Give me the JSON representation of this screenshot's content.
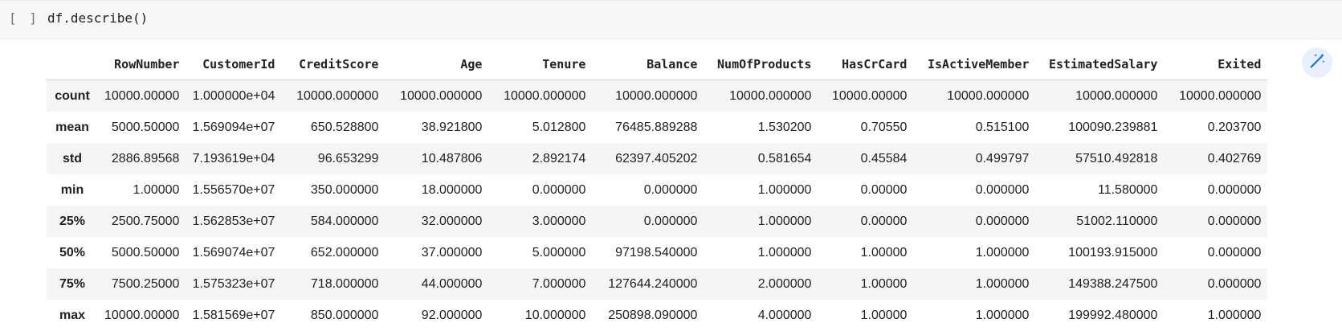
{
  "code_cell": {
    "run_indicator": "[ ]",
    "code": "df.describe()"
  },
  "icons": {
    "wand": "magic-wand-icon"
  },
  "colors": {
    "accent": "#1a73e8",
    "cell_background": "#f7f7f7",
    "row_stripe": "#f5f5f5"
  },
  "table": {
    "columns": [
      "RowNumber",
      "CustomerId",
      "CreditScore",
      "Age",
      "Tenure",
      "Balance",
      "NumOfProducts",
      "HasCrCard",
      "IsActiveMember",
      "EstimatedSalary",
      "Exited"
    ],
    "rows": [
      {
        "label": "count",
        "values": [
          "10000.00000",
          "1.000000e+04",
          "10000.000000",
          "10000.000000",
          "10000.000000",
          "10000.000000",
          "10000.000000",
          "10000.00000",
          "10000.000000",
          "10000.000000",
          "10000.000000"
        ]
      },
      {
        "label": "mean",
        "values": [
          "5000.50000",
          "1.569094e+07",
          "650.528800",
          "38.921800",
          "5.012800",
          "76485.889288",
          "1.530200",
          "0.70550",
          "0.515100",
          "100090.239881",
          "0.203700"
        ]
      },
      {
        "label": "std",
        "values": [
          "2886.89568",
          "7.193619e+04",
          "96.653299",
          "10.487806",
          "2.892174",
          "62397.405202",
          "0.581654",
          "0.45584",
          "0.499797",
          "57510.492818",
          "0.402769"
        ]
      },
      {
        "label": "min",
        "values": [
          "1.00000",
          "1.556570e+07",
          "350.000000",
          "18.000000",
          "0.000000",
          "0.000000",
          "1.000000",
          "0.00000",
          "0.000000",
          "11.580000",
          "0.000000"
        ]
      },
      {
        "label": "25%",
        "values": [
          "2500.75000",
          "1.562853e+07",
          "584.000000",
          "32.000000",
          "3.000000",
          "0.000000",
          "1.000000",
          "0.00000",
          "0.000000",
          "51002.110000",
          "0.000000"
        ]
      },
      {
        "label": "50%",
        "values": [
          "5000.50000",
          "1.569074e+07",
          "652.000000",
          "37.000000",
          "5.000000",
          "97198.540000",
          "1.000000",
          "1.00000",
          "1.000000",
          "100193.915000",
          "0.000000"
        ]
      },
      {
        "label": "75%",
        "values": [
          "7500.25000",
          "1.575323e+07",
          "718.000000",
          "44.000000",
          "7.000000",
          "127644.240000",
          "2.000000",
          "1.00000",
          "1.000000",
          "149388.247500",
          "0.000000"
        ]
      },
      {
        "label": "max",
        "values": [
          "10000.00000",
          "1.581569e+07",
          "850.000000",
          "92.000000",
          "10.000000",
          "250898.090000",
          "4.000000",
          "1.00000",
          "1.000000",
          "199992.480000",
          "1.000000"
        ]
      }
    ]
  }
}
